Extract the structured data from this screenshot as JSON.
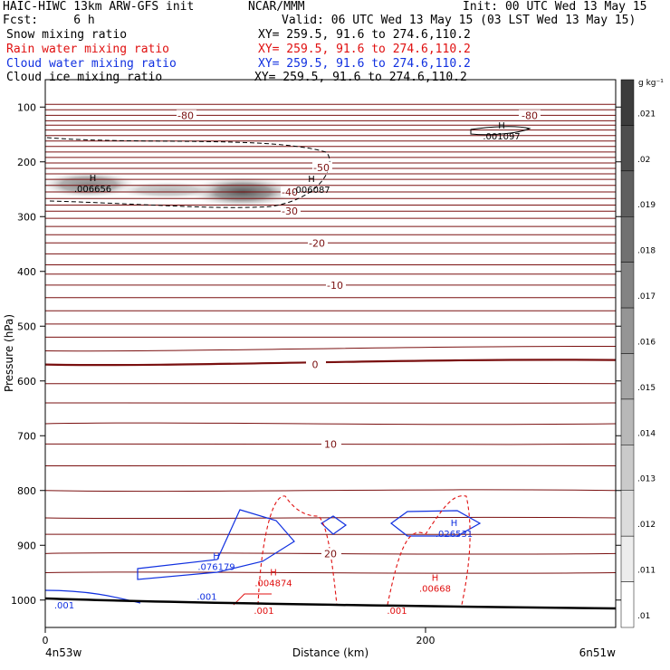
{
  "header": {
    "title": "HAIC-HIWC 13km ARW-GFS init",
    "source": "NCAR/MMM",
    "init": "Init: 00 UTC Wed 13 May 15",
    "fcst": "Fcst:     6 h",
    "valid": "Valid: 06 UTC Wed 13 May 15 (03 LST Wed 13 May 15)",
    "fields": [
      {
        "label": "Snow mixing ratio",
        "xy": "XY= 259.5, 91.6 to 274.6,110.2",
        "color": "#000000"
      },
      {
        "label": "Rain water mixing ratio",
        "xy": "XY= 259.5, 91.6 to 274.6,110.2",
        "color": "#e01010"
      },
      {
        "label": "Cloud water mixing ratio",
        "xy": "XY= 259.5, 91.6 to 274.6,110.2",
        "color": "#1030e0"
      },
      {
        "label": "Cloud ice mixing ratio",
        "xy": "XY= 259.5, 91.6 to 274.6,110.2",
        "color": "#000000"
      }
    ]
  },
  "chart_data": {
    "type": "cross-section",
    "xlabel": "Distance (km)",
    "ylabel": "Pressure (hPa)",
    "xlim": [
      0,
      300
    ],
    "ylim": [
      1050,
      50
    ],
    "x_ticks": [
      0,
      200
    ],
    "y_ticks": [
      100,
      200,
      300,
      400,
      500,
      600,
      700,
      800,
      900,
      1000
    ],
    "x_endpoint_labels": {
      "left": "4n53w",
      "right": "6n51w"
    },
    "colorbar": {
      "unit": "g kg⁻¹",
      "ticks": [
        ".021",
        ".02",
        ".019",
        ".018",
        ".017",
        ".016",
        ".015",
        ".014",
        ".013",
        ".012",
        ".011",
        ".01"
      ]
    },
    "temperature_contours": [
      {
        "label": "-80",
        "level": -80,
        "pressure": 115
      },
      {
        "label": "-50",
        "level": -50,
        "pressure": 210
      },
      {
        "label": "-40",
        "level": -40,
        "pressure": 255
      },
      {
        "label": "-30",
        "level": -30,
        "pressure": 290
      },
      {
        "label": "-20",
        "level": -20,
        "pressure": 348
      },
      {
        "label": "-10",
        "level": -10,
        "pressure": 425
      },
      {
        "label": "0",
        "level": 0,
        "pressure": 570
      },
      {
        "label": "10",
        "level": 10,
        "pressure": 715
      },
      {
        "label": "20",
        "level": 20,
        "pressure": 915
      }
    ],
    "maxima": [
      {
        "field": "snow",
        "label": ".006656",
        "distance": 25,
        "pressure": 240,
        "color": "#000000"
      },
      {
        "field": "snow",
        "label": ".006087",
        "distance": 140,
        "pressure": 242,
        "color": "#000000"
      },
      {
        "field": "snow",
        "label": ".001097",
        "distance": 240,
        "pressure": 144,
        "color": "#000000"
      },
      {
        "field": "cloud_water",
        "label": ".076179",
        "distance": 90,
        "pressure": 930,
        "color": "#1030e0"
      },
      {
        "field": "cloud_water",
        "label": ".026531",
        "distance": 215,
        "pressure": 870,
        "color": "#1030e0"
      },
      {
        "field": "cloud_water",
        "label": ".001",
        "distance": 85,
        "pressure": 985,
        "color": "#1030e0"
      },
      {
        "field": "cloud_water",
        "label": ".001",
        "distance": 10,
        "pressure": 1000,
        "color": "#1030e0"
      },
      {
        "field": "rain",
        "label": ".004874",
        "distance": 120,
        "pressure": 960,
        "color": "#e01010"
      },
      {
        "field": "rain",
        "label": ".00668",
        "distance": 205,
        "pressure": 970,
        "color": "#e01010"
      },
      {
        "field": "rain",
        "label": ".001",
        "distance": 115,
        "pressure": 1010,
        "color": "#e01010"
      },
      {
        "field": "rain",
        "label": ".001",
        "distance": 185,
        "pressure": 1010,
        "color": "#e01010"
      }
    ],
    "grid": false
  }
}
